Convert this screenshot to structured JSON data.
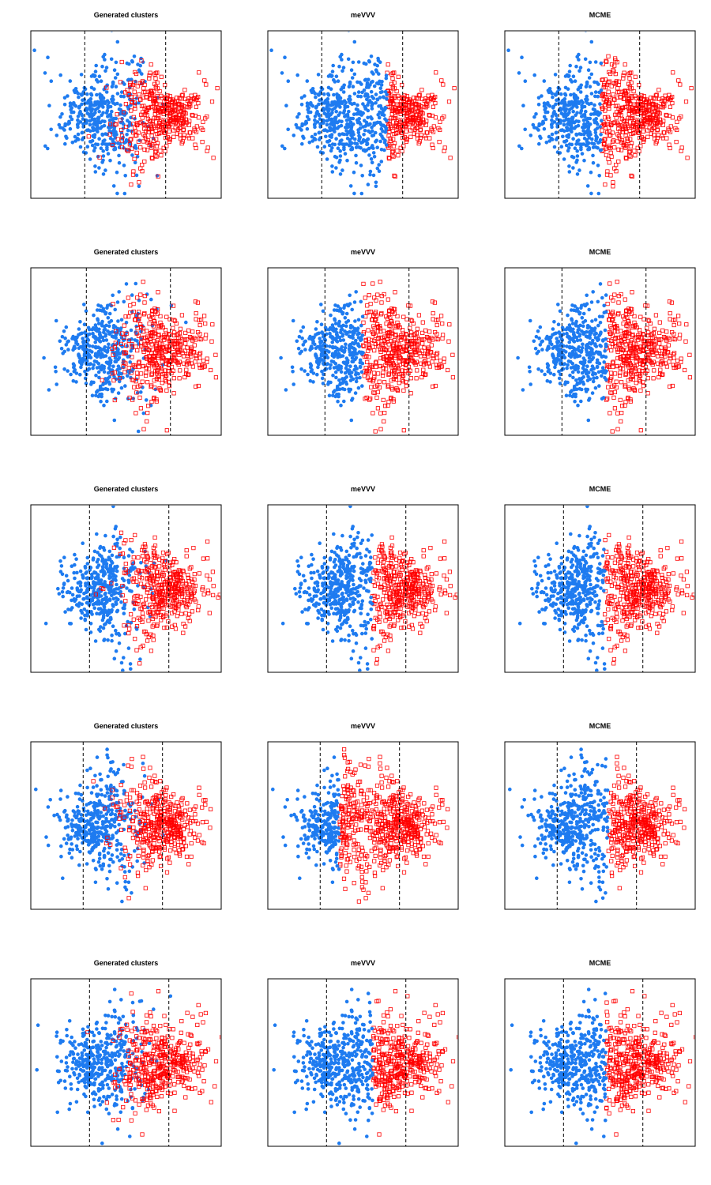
{
  "figure": {
    "rows": 5,
    "cols": 3
  },
  "chart_data": [
    {
      "type": "scatter",
      "row": 1,
      "title": "Generated clusters",
      "xlabel": "",
      "ylabel": "",
      "xlim": [
        -4,
        8
      ],
      "ylim": [
        -5,
        5
      ],
      "boundaries": [
        -0.6,
        4.5
      ],
      "grid": false,
      "axes_ticks": false,
      "series": [
        {
          "cluster": 1,
          "color": "#1E7BF0",
          "marker": "filled-circle",
          "center": [
            0.5,
            0.0
          ],
          "spread": [
            1.4,
            1.7
          ],
          "count": 420
        },
        {
          "cluster": 2,
          "color": "#FF0000",
          "marker": "open-square",
          "center": [
            4.2,
            0.0
          ],
          "spread": [
            1.5,
            1.6
          ],
          "count": 420
        }
      ]
    },
    {
      "type": "scatter",
      "row": 1,
      "title": "meVVV",
      "xlabel": "",
      "ylabel": "",
      "xlim": [
        -4,
        8
      ],
      "ylim": [
        -5,
        5
      ],
      "boundaries": [
        -0.6,
        4.5
      ],
      "grid": false,
      "axes_ticks": false,
      "series": [
        {
          "cluster": 1,
          "color": "#1E7BF0",
          "marker": "filled-circle",
          "x_range": [
            -2.0,
            3.5
          ],
          "count": 620
        },
        {
          "cluster": 2,
          "color": "#FF0000",
          "marker": "open-square",
          "x_range": [
            3.5,
            6.5
          ],
          "count": 220
        }
      ]
    },
    {
      "type": "scatter",
      "row": 1,
      "title": "MCME",
      "xlabel": "",
      "ylabel": "",
      "xlim": [
        -4,
        8
      ],
      "ylim": [
        -5,
        5
      ],
      "boundaries": [
        -0.6,
        4.5
      ],
      "grid": false,
      "axes_ticks": false,
      "series": [
        {
          "cluster": 1,
          "color": "#1E7BF0",
          "marker": "filled-circle",
          "x_range": [
            -2.0,
            2.1
          ],
          "count": 420
        },
        {
          "cluster": 2,
          "color": "#FF0000",
          "marker": "open-square",
          "x_range": [
            2.1,
            6.5
          ],
          "count": 420
        }
      ]
    },
    {
      "type": "scatter",
      "row": 2,
      "title": "Generated clusters",
      "xlabel": "",
      "ylabel": "",
      "xlim": [
        -4,
        8
      ],
      "ylim": [
        -5,
        5
      ],
      "boundaries": [
        -0.5,
        4.8
      ],
      "grid": false,
      "axes_ticks": false,
      "series": [
        {
          "cluster": 1,
          "color": "#1E7BF0",
          "marker": "filled-circle",
          "center": [
            0.6,
            0.0
          ],
          "spread": [
            1.4,
            1.6
          ],
          "count": 420
        },
        {
          "cluster": 2,
          "color": "#FF0000",
          "marker": "open-square",
          "center": [
            4.3,
            0.0
          ],
          "spread": [
            1.5,
            1.6
          ],
          "count": 420
        }
      ]
    },
    {
      "type": "scatter",
      "row": 2,
      "title": "meVVV",
      "xlabel": "",
      "ylabel": "",
      "xlim": [
        -4,
        8
      ],
      "ylim": [
        -5,
        5
      ],
      "boundaries": [
        -0.4,
        4.9
      ],
      "grid": false,
      "axes_ticks": false,
      "series": [
        {
          "cluster": 1,
          "color": "#1E7BF0",
          "marker": "filled-circle",
          "x_range": [
            -2.0,
            2.0
          ],
          "count": 380
        },
        {
          "cluster": 2,
          "color": "#FF0000",
          "marker": "open-square",
          "x_range": [
            2.0,
            6.5
          ],
          "count": 460
        }
      ]
    },
    {
      "type": "scatter",
      "row": 2,
      "title": "MCME",
      "xlabel": "",
      "ylabel": "",
      "xlim": [
        -4,
        8
      ],
      "ylim": [
        -5,
        5
      ],
      "boundaries": [
        -0.4,
        4.9
      ],
      "grid": false,
      "axes_ticks": false,
      "series": [
        {
          "cluster": 1,
          "color": "#1E7BF0",
          "marker": "filled-circle",
          "x_range": [
            -2.0,
            2.4
          ],
          "count": 410
        },
        {
          "cluster": 2,
          "color": "#FF0000",
          "marker": "open-square",
          "x_range": [
            2.4,
            6.5
          ],
          "count": 430
        }
      ]
    },
    {
      "type": "scatter",
      "row": 3,
      "title": "Generated clusters",
      "xlabel": "",
      "ylabel": "",
      "xlim": [
        -4,
        8
      ],
      "ylim": [
        -5,
        5
      ],
      "boundaries": [
        -0.3,
        4.7
      ],
      "grid": false,
      "axes_ticks": false,
      "series": [
        {
          "cluster": 1,
          "color": "#1E7BF0",
          "marker": "filled-circle",
          "center": [
            0.5,
            0.0
          ],
          "spread": [
            1.3,
            1.6
          ],
          "count": 420
        },
        {
          "cluster": 2,
          "color": "#FF0000",
          "marker": "open-square",
          "center": [
            4.3,
            0.0
          ],
          "spread": [
            1.5,
            1.6
          ],
          "count": 420
        }
      ]
    },
    {
      "type": "scatter",
      "row": 3,
      "title": "meVVV",
      "xlabel": "",
      "ylabel": "",
      "xlim": [
        -4,
        8
      ],
      "ylim": [
        -5,
        5
      ],
      "boundaries": [
        -0.3,
        4.7
      ],
      "grid": false,
      "axes_ticks": false,
      "series": [
        {
          "cluster": 1,
          "color": "#1E7BF0",
          "marker": "filled-circle",
          "x_range": [
            -2.0,
            2.6
          ],
          "count": 400
        },
        {
          "cluster": 2,
          "color": "#FF0000",
          "marker": "open-square",
          "x_range": [
            2.6,
            6.5
          ],
          "count": 440
        }
      ]
    },
    {
      "type": "scatter",
      "row": 3,
      "title": "MCME",
      "xlabel": "",
      "ylabel": "",
      "xlim": [
        -4,
        8
      ],
      "ylim": [
        -5,
        5
      ],
      "boundaries": [
        -0.3,
        4.7
      ],
      "grid": false,
      "axes_ticks": false,
      "series": [
        {
          "cluster": 1,
          "color": "#1E7BF0",
          "marker": "filled-circle",
          "x_range": [
            -2.0,
            2.3
          ],
          "count": 400
        },
        {
          "cluster": 2,
          "color": "#FF0000",
          "marker": "open-square",
          "x_range": [
            2.3,
            6.5
          ],
          "count": 440
        }
      ]
    },
    {
      "type": "scatter",
      "row": 4,
      "title": "Generated clusters",
      "xlabel": "",
      "ylabel": "",
      "xlim": [
        -4,
        8
      ],
      "ylim": [
        -5,
        5
      ],
      "boundaries": [
        -0.7,
        4.3
      ],
      "grid": false,
      "axes_ticks": false,
      "series": [
        {
          "cluster": 1,
          "color": "#1E7BF0",
          "marker": "filled-circle",
          "center": [
            0.4,
            0.0
          ],
          "spread": [
            1.4,
            1.6
          ],
          "count": 420
        },
        {
          "cluster": 2,
          "color": "#FF0000",
          "marker": "open-square",
          "center": [
            4.2,
            0.0
          ],
          "spread": [
            1.5,
            1.6
          ],
          "count": 420
        }
      ]
    },
    {
      "type": "scatter",
      "row": 4,
      "title": "meVVV",
      "xlabel": "",
      "ylabel": "",
      "xlim": [
        -4,
        8
      ],
      "ylim": [
        -5,
        5
      ],
      "boundaries": [
        -0.7,
        4.3
      ],
      "grid": false,
      "axes_ticks": false,
      "series": [
        {
          "cluster": 1,
          "color": "#1E7BF0",
          "marker": "filled-circle",
          "x_range": [
            -2.0,
            0.5
          ],
          "count": 230
        },
        {
          "cluster": 2,
          "color": "#FF0000",
          "marker": "open-square",
          "x_range": [
            0.5,
            6.5
          ],
          "count": 610
        }
      ]
    },
    {
      "type": "scatter",
      "row": 4,
      "title": "MCME",
      "xlabel": "",
      "ylabel": "",
      "xlim": [
        -4,
        8
      ],
      "ylim": [
        -5,
        5
      ],
      "boundaries": [
        -0.7,
        4.3
      ],
      "grid": false,
      "axes_ticks": false,
      "series": [
        {
          "cluster": 1,
          "color": "#1E7BF0",
          "marker": "filled-circle",
          "x_range": [
            -2.0,
            2.5
          ],
          "count": 420
        },
        {
          "cluster": 2,
          "color": "#FF0000",
          "marker": "open-square",
          "x_range": [
            2.5,
            6.5
          ],
          "count": 420
        }
      ]
    },
    {
      "type": "scatter",
      "row": 5,
      "title": "Generated clusters",
      "xlabel": "",
      "ylabel": "",
      "xlim": [
        -4,
        8
      ],
      "ylim": [
        -5,
        5
      ],
      "boundaries": [
        -0.3,
        4.7
      ],
      "grid": false,
      "axes_ticks": false,
      "series": [
        {
          "cluster": 1,
          "color": "#1E7BF0",
          "marker": "filled-circle",
          "center": [
            0.5,
            0.0
          ],
          "spread": [
            1.4,
            1.6
          ],
          "count": 420
        },
        {
          "cluster": 2,
          "color": "#FF0000",
          "marker": "open-square",
          "center": [
            4.3,
            0.0
          ],
          "spread": [
            1.5,
            1.6
          ],
          "count": 420
        }
      ]
    },
    {
      "type": "scatter",
      "row": 5,
      "title": "meVVV",
      "xlabel": "",
      "ylabel": "",
      "xlim": [
        -4,
        8
      ],
      "ylim": [
        -5,
        5
      ],
      "boundaries": [
        -0.3,
        4.7
      ],
      "grid": false,
      "axes_ticks": false,
      "series": [
        {
          "cluster": 1,
          "color": "#1E7BF0",
          "marker": "filled-circle",
          "x_range": [
            -2.0,
            2.6
          ],
          "count": 400
        },
        {
          "cluster": 2,
          "color": "#FF0000",
          "marker": "open-square",
          "x_range": [
            2.6,
            6.5
          ],
          "count": 440
        }
      ]
    },
    {
      "type": "scatter",
      "row": 5,
      "title": "MCME",
      "xlabel": "",
      "ylabel": "",
      "xlim": [
        -4,
        8
      ],
      "ylim": [
        -5,
        5
      ],
      "boundaries": [
        -0.3,
        4.7
      ],
      "grid": false,
      "axes_ticks": false,
      "series": [
        {
          "cluster": 1,
          "color": "#1E7BF0",
          "marker": "filled-circle",
          "x_range": [
            -2.0,
            2.4
          ],
          "count": 400
        },
        {
          "cluster": 2,
          "color": "#FF0000",
          "marker": "open-square",
          "x_range": [
            2.4,
            6.5
          ],
          "count": 440
        }
      ]
    }
  ]
}
